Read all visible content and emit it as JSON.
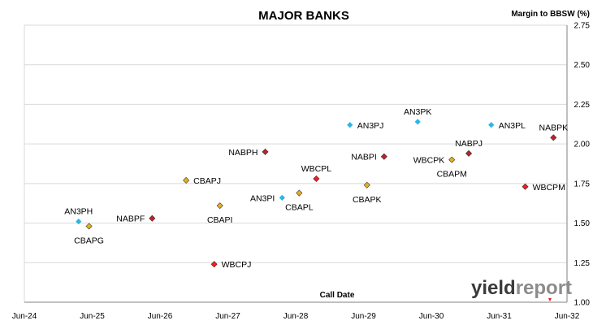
{
  "chart_data": {
    "type": "scatter",
    "title": "MAJOR BANKS",
    "xlabel": "Call Date",
    "ylabel": "Margin to BBSW (%)",
    "xlim": [
      "2024-06-01",
      "2032-06-01"
    ],
    "ylim": [
      1.0,
      2.75
    ],
    "x_ticks": [
      "Jun-24",
      "Jun-25",
      "Jun-26",
      "Jun-27",
      "Jun-28",
      "Jun-29",
      "Jun-30",
      "Jun-31",
      "Jun-32"
    ],
    "y_ticks": [
      "1.00",
      "1.25",
      "1.50",
      "1.75",
      "2.00",
      "2.25",
      "2.50",
      "2.75"
    ],
    "grid": "horizontal",
    "colors": {
      "ANZ": "#27b7e8",
      "CBA": "#e8b020",
      "NAB": "#c0202a",
      "WBC": "#ff1a1a"
    },
    "points": [
      {
        "label": "AN3PH",
        "bank": "ANZ",
        "x": "2025-03-20",
        "y": 1.51,
        "label_pos": "above"
      },
      {
        "label": "CBAPG",
        "bank": "CBA",
        "x": "2025-05-15",
        "y": 1.48,
        "label_pos": "below"
      },
      {
        "label": "NABPF",
        "bank": "NAB",
        "x": "2026-04-20",
        "y": 1.53,
        "label_pos": "left"
      },
      {
        "label": "CBAPJ",
        "bank": "CBA",
        "x": "2026-10-20",
        "y": 1.77,
        "label_pos": "right"
      },
      {
        "label": "WBCPJ",
        "bank": "WBC",
        "x": "2027-03-20",
        "y": 1.24,
        "label_pos": "right"
      },
      {
        "label": "CBAPI",
        "bank": "CBA",
        "x": "2027-04-20",
        "y": 1.61,
        "label_pos": "below"
      },
      {
        "label": "NABPH",
        "bank": "NAB",
        "x": "2027-12-20",
        "y": 1.95,
        "label_pos": "left"
      },
      {
        "label": "AN3PI",
        "bank": "ANZ",
        "x": "2028-03-20",
        "y": 1.66,
        "label_pos": "left"
      },
      {
        "label": "CBAPL",
        "bank": "CBA",
        "x": "2028-06-20",
        "y": 1.69,
        "label_pos": "below"
      },
      {
        "label": "WBCPL",
        "bank": "WBC",
        "x": "2028-09-20",
        "y": 1.78,
        "label_pos": "above"
      },
      {
        "label": "AN3PJ",
        "bank": "ANZ",
        "x": "2029-03-20",
        "y": 2.12,
        "label_pos": "right"
      },
      {
        "label": "CBAPK",
        "bank": "CBA",
        "x": "2029-06-20",
        "y": 1.74,
        "label_pos": "below"
      },
      {
        "label": "NABPI",
        "bank": "NAB",
        "x": "2029-09-20",
        "y": 1.92,
        "label_pos": "left"
      },
      {
        "label": "AN3PK",
        "bank": "ANZ",
        "x": "2030-03-20",
        "y": 2.14,
        "label_pos": "above"
      },
      {
        "label": "WBCPK",
        "bank": "CBA",
        "x": "2030-09-20",
        "y": 1.9,
        "label_pos": "left"
      },
      {
        "label": "CBAPM",
        "bank": "CBA",
        "x": "2030-09-20",
        "y": 1.9,
        "label_pos": "below",
        "hide_marker": true
      },
      {
        "label": "NABPJ",
        "bank": "NAB",
        "x": "2030-12-20",
        "y": 1.94,
        "label_pos": "above"
      },
      {
        "label": "AN3PL",
        "bank": "ANZ",
        "x": "2031-04-20",
        "y": 2.12,
        "label_pos": "right"
      },
      {
        "label": "WBCPM",
        "bank": "WBC",
        "x": "2031-10-20",
        "y": 1.73,
        "label_pos": "right"
      },
      {
        "label": "NABPK",
        "bank": "NAB",
        "x": "2032-03-20",
        "y": 2.04,
        "label_pos": "above"
      }
    ]
  },
  "logo": {
    "part1": "yield",
    "part2": "report"
  }
}
